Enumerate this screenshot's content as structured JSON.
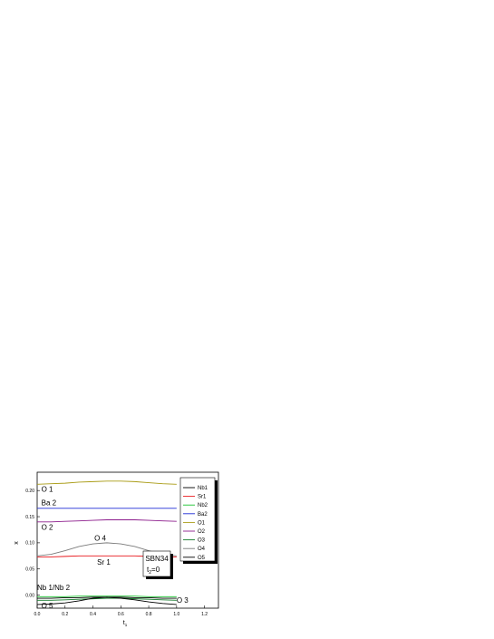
{
  "chart_data": {
    "type": "line",
    "xlabel": "t",
    "xlabel_sub": "1",
    "ylabel": "x",
    "xlim": [
      0.0,
      1.3
    ],
    "ylim": [
      -0.025,
      0.235
    ],
    "xticks": [
      "0.0",
      "0.2",
      "0.4",
      "0.6",
      "0.8",
      "1.0",
      "1.2"
    ],
    "yticks": [
      "0.00",
      "0.05",
      "0.10",
      "0.15",
      "0.20"
    ],
    "x": [
      0.0,
      0.1,
      0.2,
      0.3,
      0.4,
      0.5,
      0.6,
      0.7,
      0.8,
      0.9,
      1.0
    ],
    "series": [
      {
        "name": "Nb1",
        "color": "#000000",
        "values": [
          -0.006,
          -0.006,
          -0.005,
          -0.005,
          -0.004,
          -0.004,
          -0.004,
          -0.005,
          -0.005,
          -0.006,
          -0.006
        ]
      },
      {
        "name": "Sr1",
        "color": "#e8161b",
        "values": [
          0.073,
          0.073,
          0.074,
          0.075,
          0.075,
          0.075,
          0.075,
          0.075,
          0.074,
          0.073,
          0.073
        ]
      },
      {
        "name": "Nb2",
        "color": "#19c32e",
        "values": [
          -0.003,
          -0.003,
          -0.003,
          -0.002,
          -0.002,
          -0.002,
          -0.002,
          -0.002,
          -0.003,
          -0.003,
          -0.003
        ]
      },
      {
        "name": "Ba2",
        "color": "#1e2cd6",
        "values": [
          0.166,
          0.166,
          0.166,
          0.166,
          0.166,
          0.166,
          0.166,
          0.166,
          0.166,
          0.166,
          0.166
        ]
      },
      {
        "name": "O1",
        "color": "#a89a12",
        "values": [
          0.212,
          0.213,
          0.214,
          0.216,
          0.217,
          0.218,
          0.218,
          0.217,
          0.215,
          0.213,
          0.212
        ]
      },
      {
        "name": "O2",
        "color": "#8c1c8c",
        "values": [
          0.14,
          0.14,
          0.141,
          0.142,
          0.143,
          0.144,
          0.144,
          0.144,
          0.143,
          0.142,
          0.141
        ]
      },
      {
        "name": "O3",
        "color": "#147a2a",
        "values": [
          -0.01,
          -0.01,
          -0.009,
          -0.008,
          -0.007,
          -0.006,
          -0.006,
          -0.007,
          -0.008,
          -0.009,
          -0.01
        ]
      },
      {
        "name": "O4",
        "color": "#7a7a7a",
        "values": [
          0.075,
          0.078,
          0.085,
          0.093,
          0.098,
          0.1,
          0.098,
          0.093,
          0.085,
          0.078,
          0.075
        ]
      },
      {
        "name": "O5",
        "color": "#000000",
        "values": [
          -0.018,
          -0.017,
          -0.015,
          -0.011,
          -0.006,
          -0.004,
          -0.006,
          -0.009,
          -0.013,
          -0.016,
          -0.018
        ]
      }
    ],
    "annotations": [
      {
        "text": "O 1",
        "x": 0.03,
        "y": 0.198
      },
      {
        "text": "Ba 2",
        "x": 0.03,
        "y": 0.172
      },
      {
        "text": "O 2",
        "x": 0.03,
        "y": 0.125
      },
      {
        "text": "O 4",
        "x": 0.41,
        "y": 0.104
      },
      {
        "text": "Sr 1",
        "x": 0.43,
        "y": 0.058
      },
      {
        "text": "Nb 1/Nb 2",
        "x": 0.0,
        "y": 0.01
      },
      {
        "text": "O 3",
        "x": 1.0,
        "y": -0.015
      },
      {
        "text": "O 5",
        "x": 0.03,
        "y": -0.025
      }
    ],
    "info_box": {
      "line1": "SBN34",
      "line2_main": "t",
      "line2_sub": "2",
      "line2_rest": "=0"
    },
    "legend_position": "right",
    "grid": false
  }
}
